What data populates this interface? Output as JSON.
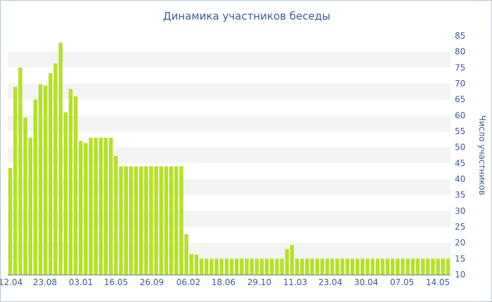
{
  "chart_data": {
    "type": "bar",
    "title": "Динамика участников беседы",
    "xlabel": "",
    "ylabel": "Число участников",
    "ylim": [
      10,
      85
    ],
    "y_ticks": [
      10,
      15,
      20,
      25,
      30,
      35,
      40,
      45,
      50,
      55,
      60,
      65,
      70,
      75,
      80,
      85
    ],
    "x_tick_labels": [
      "12.04",
      "23.08",
      "03.01",
      "16.05",
      "26.09",
      "06.02",
      "18.06",
      "29.10",
      "11.03",
      "23.04",
      "30.04",
      "07.05",
      "14.05"
    ],
    "grid": "horizontal alternating bands",
    "bar_color": "#b5e02a",
    "band_color": "#f4f4f4",
    "text_color": "#3b5b8f",
    "values": [
      43.5,
      69,
      75,
      59.3,
      53,
      65,
      69.7,
      69.3,
      73.3,
      76.3,
      82.9,
      61,
      68.3,
      66,
      52,
      51.3,
      53,
      53,
      53,
      53,
      53,
      47.3,
      44,
      44,
      44,
      44,
      44,
      44,
      44,
      44,
      44,
      44,
      44,
      44,
      44,
      22.7,
      16.5,
      16.3,
      15,
      15,
      15,
      15,
      15,
      15,
      15,
      15,
      15,
      15,
      15,
      15,
      15,
      15,
      15,
      15,
      15,
      18,
      19.3,
      15,
      15,
      15,
      15,
      15,
      15,
      15,
      15,
      15,
      15,
      15,
      15,
      15,
      15,
      15,
      15,
      15,
      15,
      15,
      15,
      15,
      15,
      15,
      15,
      15,
      15,
      15,
      15,
      15,
      15,
      15
    ]
  }
}
